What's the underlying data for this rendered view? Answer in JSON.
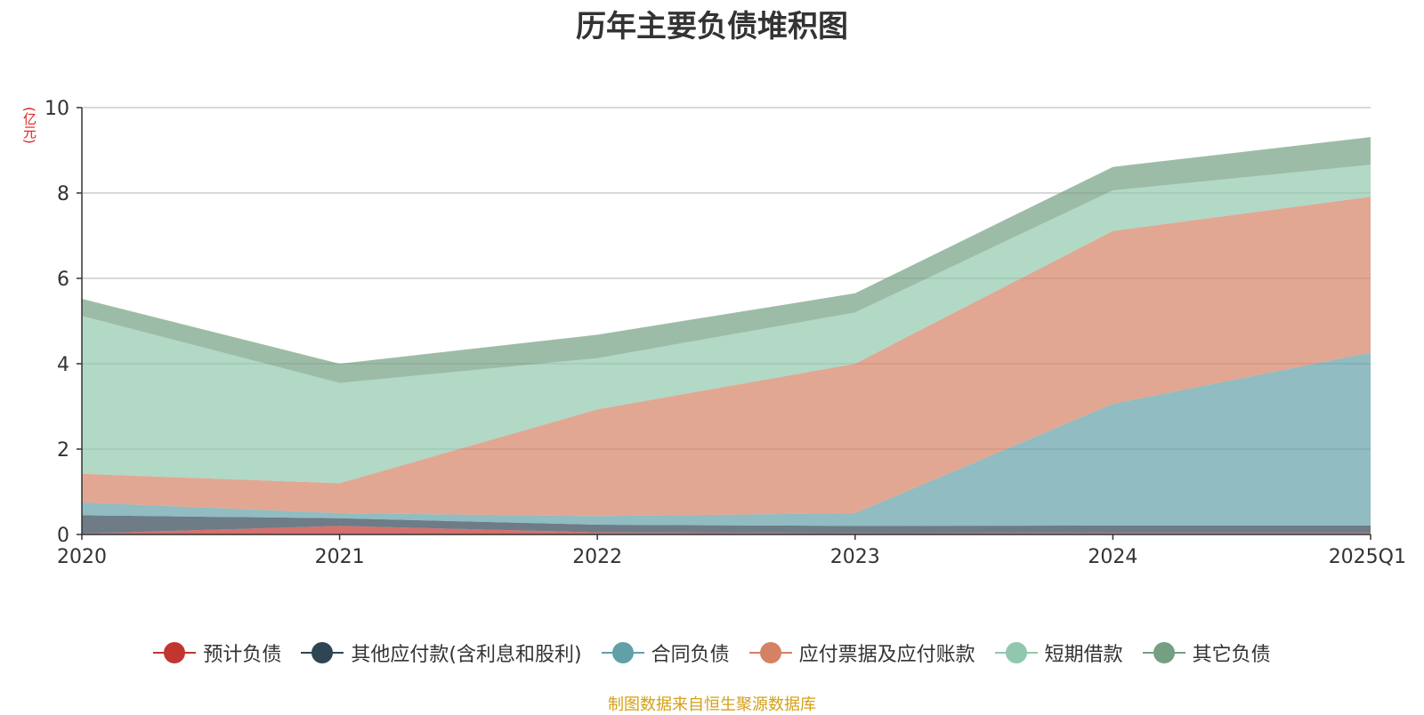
{
  "chart_data": {
    "type": "area",
    "stacked": true,
    "title": "历年主要负债堆积图",
    "ylabel": "(亿元)",
    "xlabel": "",
    "categories": [
      "2020",
      "2021",
      "2022",
      "2023",
      "2024",
      "2025Q1"
    ],
    "ylim": [
      0,
      10
    ],
    "yticks": [
      0,
      2,
      4,
      6,
      8,
      10
    ],
    "grid": true,
    "legend_position": "bottom",
    "series": [
      {
        "name": "预计负债",
        "color": "#c23531",
        "values": [
          0.02,
          0.2,
          0.05,
          0.03,
          0.04,
          0.04
        ]
      },
      {
        "name": "其他应付款(含利息和股利)",
        "color": "#2f4554",
        "values": [
          0.43,
          0.18,
          0.18,
          0.17,
          0.17,
          0.17
        ]
      },
      {
        "name": "合同负债",
        "color": "#61a0a8",
        "values": [
          0.3,
          0.12,
          0.2,
          0.3,
          2.85,
          4.05
        ]
      },
      {
        "name": "应付票据及应付账款",
        "color": "#d48265",
        "values": [
          0.67,
          0.7,
          2.5,
          3.5,
          4.05,
          3.65
        ]
      },
      {
        "name": "短期借款",
        "color": "#91c7ae",
        "values": [
          3.7,
          2.35,
          1.2,
          1.2,
          0.95,
          0.75
        ]
      },
      {
        "name": "其它负债",
        "color": "#749f83",
        "values": [
          0.4,
          0.45,
          0.55,
          0.45,
          0.55,
          0.65
        ]
      }
    ]
  },
  "footer": "制图数据来自恒生聚源数据库"
}
